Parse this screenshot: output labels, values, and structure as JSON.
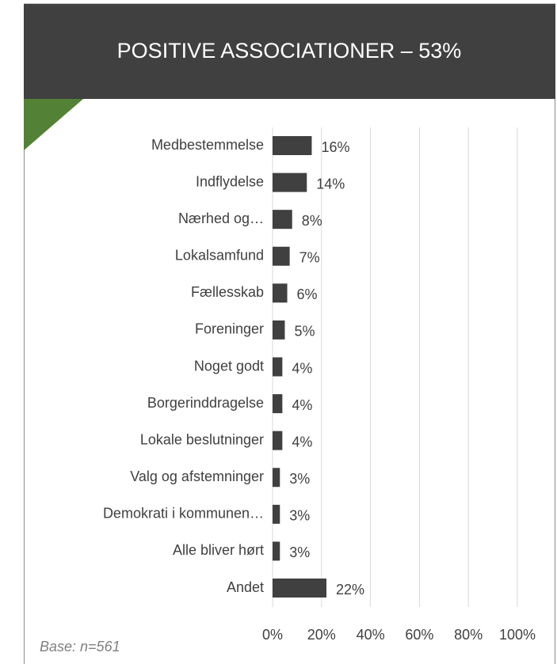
{
  "chart_data": {
    "type": "bar",
    "orientation": "horizontal",
    "title": "POSITIVE ASSOCIATIONER – 53%",
    "note": "Base: n=561",
    "categories": [
      "Medbestemmelse",
      "Indflydelse",
      "Nærhed og…",
      "Lokalsamfund",
      "Fællesskab",
      "Foreninger",
      "Noget godt",
      "Borgerinddragelse",
      "Lokale beslutninger",
      "Valg og afstemninger",
      "Demokrati i kommunen…",
      "Alle bliver hørt",
      "Andet"
    ],
    "values": [
      16,
      14,
      8,
      7,
      6,
      5,
      4,
      4,
      4,
      3,
      3,
      3,
      22
    ],
    "value_labels": [
      "16%",
      "14%",
      "8%",
      "7%",
      "6%",
      "5%",
      "4%",
      "4%",
      "4%",
      "3%",
      "3%",
      "3%",
      "22%"
    ],
    "color": "#404040",
    "xlim": [
      0,
      100
    ],
    "xticks": [
      {
        "value": 0,
        "label": "0%"
      },
      {
        "value": 20,
        "label": "20%"
      },
      {
        "value": 40,
        "label": "40%"
      },
      {
        "value": 60,
        "label": "60%"
      },
      {
        "value": 80,
        "label": "80%"
      },
      {
        "value": 100,
        "label": "100%"
      }
    ],
    "grid": true
  }
}
